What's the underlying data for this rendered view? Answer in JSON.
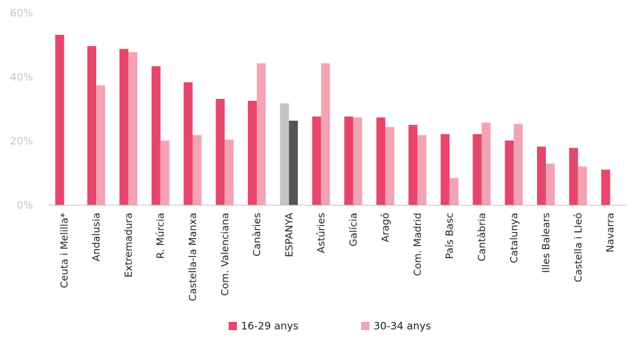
{
  "chart_data": {
    "type": "bar",
    "title": "",
    "xlabel": "",
    "ylabel": "",
    "ylim": [
      0,
      60
    ],
    "yticks": [
      "0%",
      "20%",
      "40%",
      "60%"
    ],
    "grid": false,
    "legend_position": "bottom",
    "categories": [
      "Ceuta i Melilla*",
      "Andalusia",
      "Extremadura",
      "R. Múrcia",
      "Castella-la Manxa",
      "Com. Valenciana",
      "Canàries",
      "ESPANYA",
      "Astúries",
      "Galícia",
      "Aragó",
      "Com. Madrid",
      "País Basc",
      "Cantàbria",
      "Catalunya",
      "Illes Balears",
      "Castella i Lleó",
      "Navarra"
    ],
    "series": [
      {
        "name": "16-29 anys",
        "color": "#e8456a",
        "values": [
          53.2,
          49.7,
          48.8,
          43.4,
          38.4,
          33.2,
          32.6,
          31.8,
          27.7,
          27.7,
          27.4,
          25.1,
          22.2,
          22.2,
          20.2,
          18.3,
          17.9,
          11.1
        ]
      },
      {
        "name": "30-34 anys",
        "color": "#f4a3b3",
        "values": [
          null,
          37.4,
          47.8,
          20.2,
          21.9,
          20.5,
          44.3,
          26.4,
          44.3,
          27.4,
          24.4,
          21.9,
          8.5,
          25.8,
          25.4,
          13.0,
          12.1,
          null
        ]
      }
    ],
    "highlight": {
      "category": "ESPANYA",
      "colors": [
        "#c4c4c4",
        "#555555"
      ]
    }
  }
}
